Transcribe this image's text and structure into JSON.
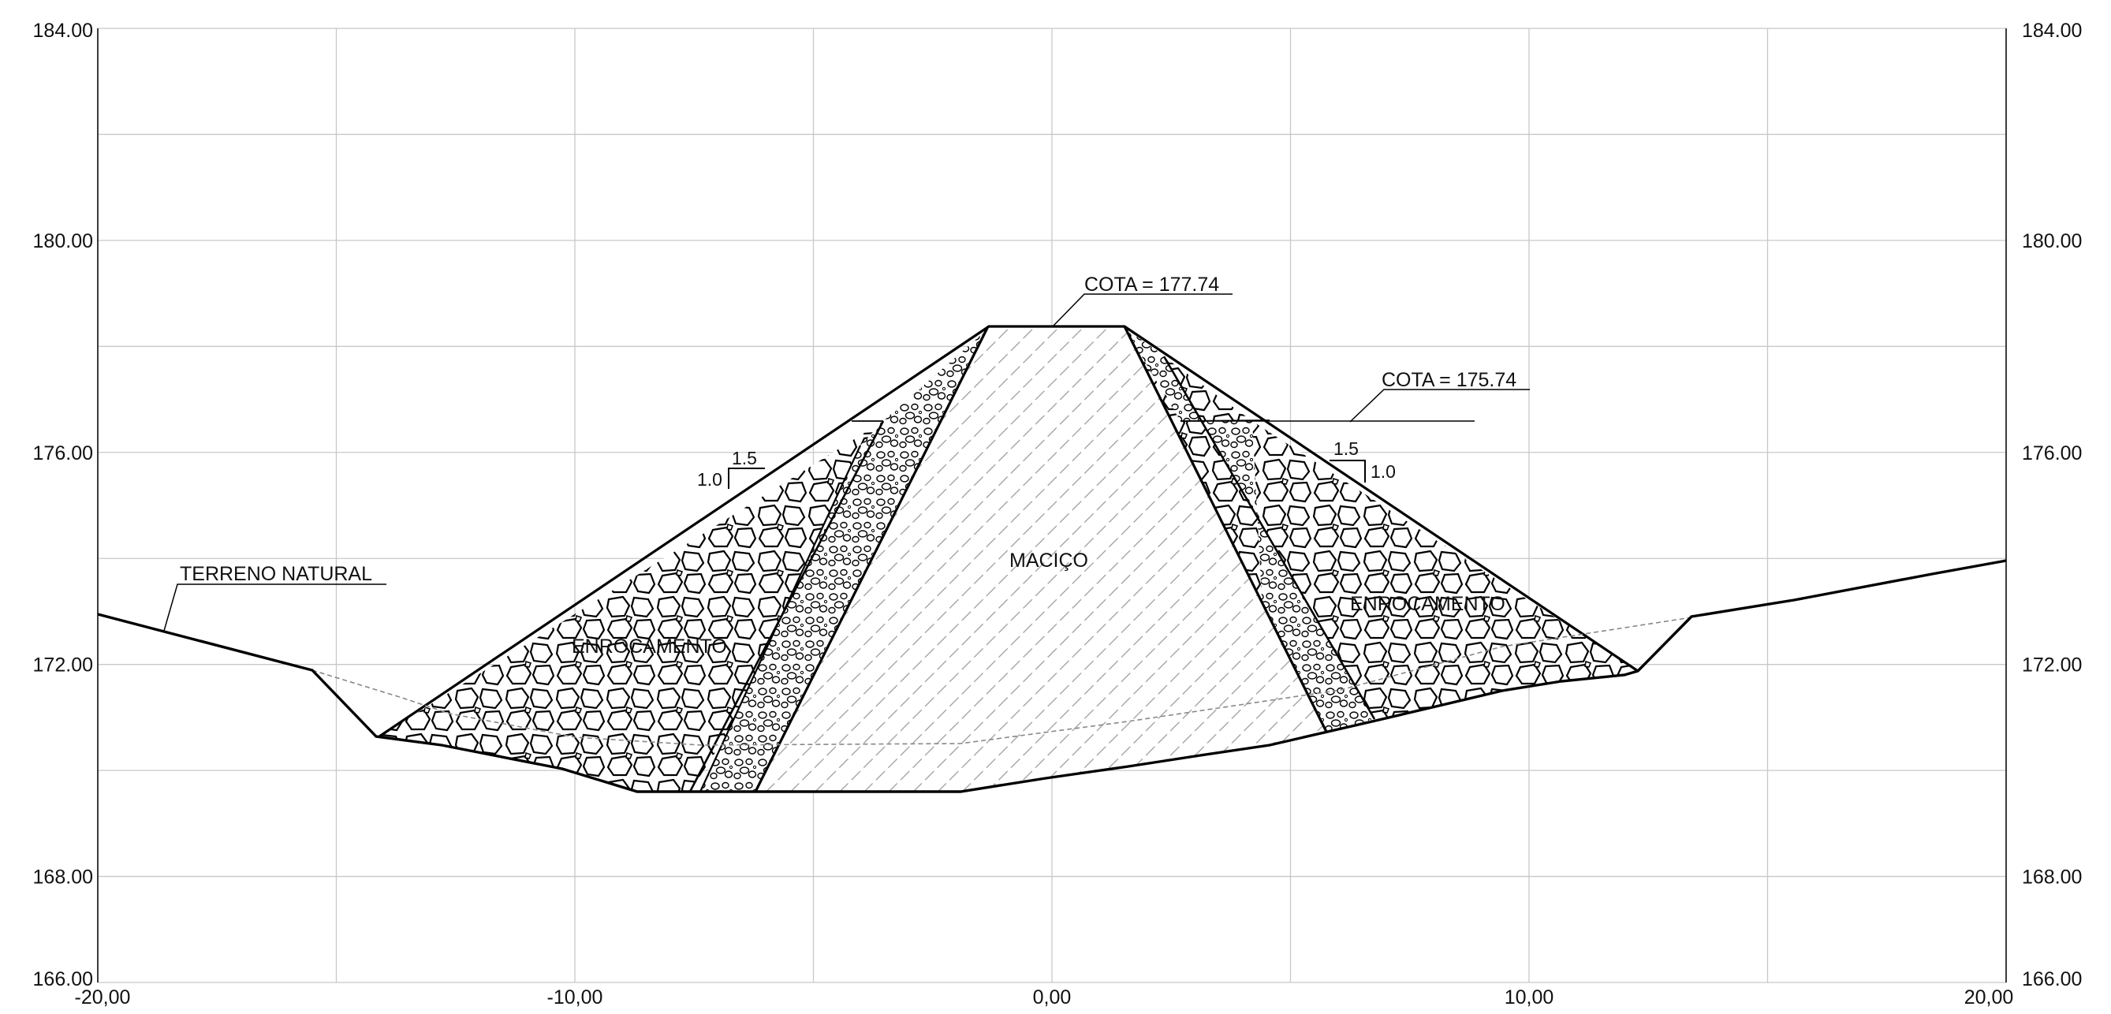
{
  "axes": {
    "x_range": [
      -20,
      20
    ],
    "y_range": [
      166,
      184
    ],
    "x_ticks": [
      "-20,00",
      "-10,00",
      "0,00",
      "10,00",
      "20,00"
    ],
    "y_ticks": [
      "184.00",
      "180.00",
      "176.00",
      "172.00",
      "168.00",
      "166.00"
    ],
    "grid": true
  },
  "labels": {
    "crest_elevation": "COTA = 177.74",
    "berm_elevation": "COTA = 175.74",
    "natural_ground": "TERRENO NATURAL",
    "core": "MACIÇO",
    "rockfill_left": "ENROCAMENTO",
    "rockfill_right": "ENROCAMENTO",
    "slope_left_h": "1.5",
    "slope_left_v": "1.0",
    "slope_right_h": "1.5",
    "slope_right_v": "1.0"
  },
  "colors": {
    "line": "#000000",
    "grid": "#c8c8c8",
    "hatch": "#9a9a9a",
    "dashed": "#888888"
  }
}
